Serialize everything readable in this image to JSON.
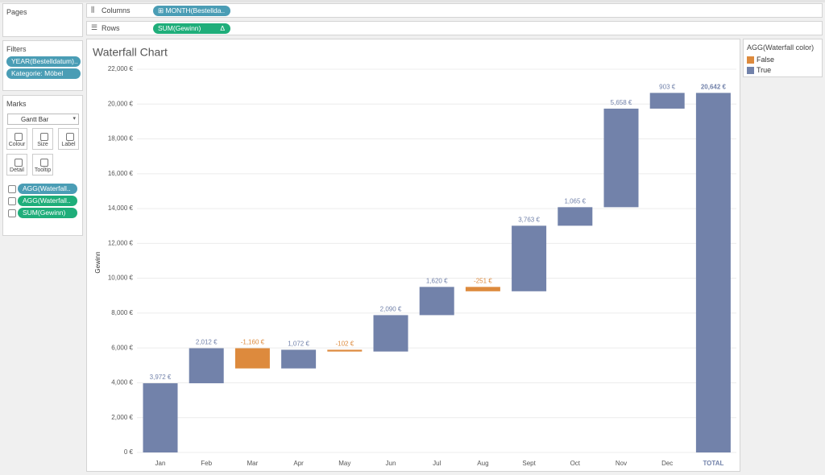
{
  "pages": {
    "title": "Pages"
  },
  "filters": {
    "title": "Filters",
    "items": [
      {
        "text": "YEAR(Bestelldatum)..",
        "color": "#4a9db5"
      },
      {
        "text": "Kategorie: Möbel",
        "color": "#4a9db5"
      }
    ]
  },
  "marks": {
    "title": "Marks",
    "mark_type": "Gantt Bar",
    "buttons": [
      "Colour",
      "Size",
      "Label",
      "Detail",
      "Tooltip"
    ],
    "pills": [
      {
        "text": "AGG(Waterfall..",
        "color": "#4a9db5"
      },
      {
        "text": "AGG(Waterfall..",
        "color": "#1fae7a"
      },
      {
        "text": "SUM(Gewinn)",
        "color": "#1fae7a"
      }
    ]
  },
  "shelves": {
    "columns": {
      "label": "Columns",
      "pill": "MONTH(Bestellda..",
      "color": "#4a9db5"
    },
    "rows": {
      "label": "Rows",
      "pill": "SUM(Gewinn)",
      "pill_icon": "Δ",
      "color": "#1fae7a"
    }
  },
  "chart_data": {
    "type": "waterfall",
    "title": "Waterfall Chart",
    "y_label": "Gewinn",
    "categories": [
      "Jan",
      "Feb",
      "Mar",
      "Apr",
      "May",
      "Jun",
      "Jul",
      "Aug",
      "Sept",
      "Oct",
      "Nov",
      "Dec"
    ],
    "legend_title": "AGG(Waterfall color)",
    "series": [
      {
        "name": "False",
        "color": "#dd8a3d",
        "values": [
          null,
          null,
          -1160,
          null,
          -102,
          null,
          null,
          -251,
          null,
          null,
          null,
          null
        ],
        "value_labels": [
          null,
          null,
          "-1,160 €",
          null,
          "-102 €",
          null,
          null,
          "-251 €",
          null,
          null,
          null,
          null
        ]
      },
      {
        "name": "True",
        "color": "#7282aa",
        "values": [
          3972,
          2012,
          null,
          1072,
          null,
          2090,
          1620,
          null,
          3763,
          1065,
          5658,
          903
        ],
        "value_labels": [
          "3,972 €",
          "2,012 €",
          null,
          "1,072 €",
          null,
          "2,090 €",
          "1,620 €",
          null,
          "3,763 €",
          "1,065 €",
          "5,658 €",
          "903 €"
        ]
      }
    ],
    "total": {
      "category": "TOTAL",
      "value": 20642,
      "value_label": "20,642 €",
      "color": "#7282aa"
    },
    "ylim": [
      0,
      22000
    ],
    "yticks": [
      {
        "value": 0,
        "label": "0 €"
      },
      {
        "value": 2000,
        "label": "2,000 €"
      },
      {
        "value": 4000,
        "label": "4,000 €"
      },
      {
        "value": 6000,
        "label": "6,000 €"
      },
      {
        "value": 8000,
        "label": "8,000 €"
      },
      {
        "value": 10000,
        "label": "10,000 €"
      },
      {
        "value": 12000,
        "label": "12,000 €"
      },
      {
        "value": 14000,
        "label": "14,000 €"
      },
      {
        "value": 16000,
        "label": "16,000 €"
      },
      {
        "value": 18000,
        "label": "18,000 €"
      },
      {
        "value": 20000,
        "label": "20,000 €"
      },
      {
        "value": 22000,
        "label": "22,000 €"
      }
    ],
    "grid": true
  }
}
